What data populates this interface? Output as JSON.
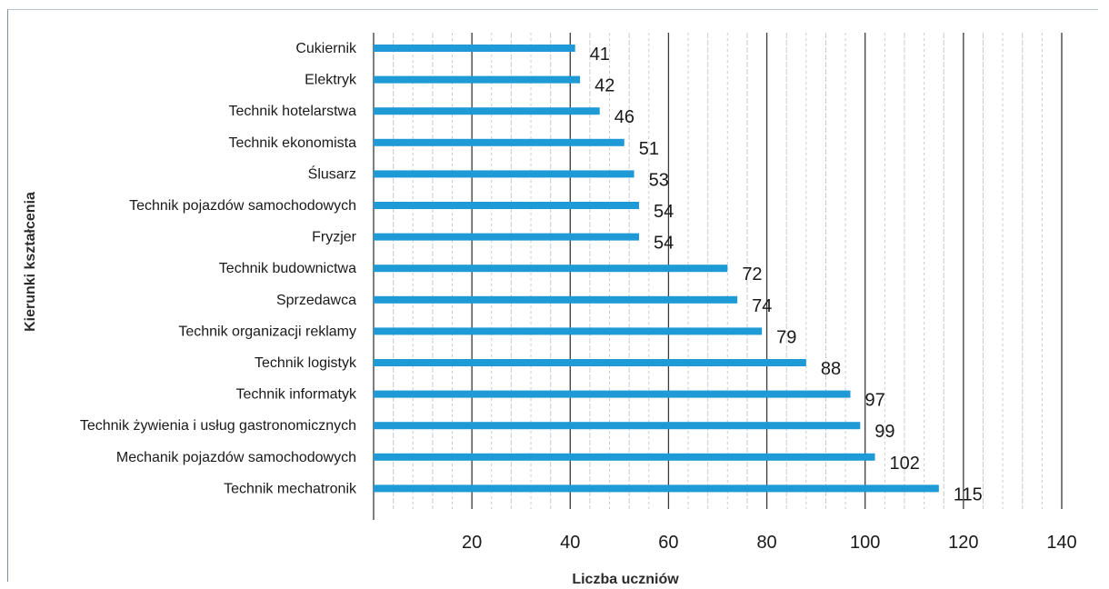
{
  "chart_data": {
    "type": "bar",
    "orientation": "horizontal",
    "categories": [
      "Cukiernik",
      "Elektryk",
      "Technik hotelarstwa",
      "Technik ekonomista",
      "Ślusarz",
      "Technik pojazdów samochodowych",
      "Fryzjer",
      "Technik budownictwa",
      "Sprzedawca",
      "Technik organizacji reklamy",
      "Technik logistyk",
      "Technik informatyk",
      "Technik żywienia i usług gastronomicznych",
      "Mechanik pojazdów samochodowych",
      "Technik mechatronik"
    ],
    "values": [
      41,
      42,
      46,
      51,
      53,
      54,
      54,
      72,
      74,
      79,
      88,
      97,
      99,
      102,
      115
    ],
    "value_labels": [
      "41",
      "42",
      "46",
      "51",
      "53",
      "54",
      "54",
      "72",
      "74",
      "79",
      "88",
      "97",
      "99",
      "102",
      "115"
    ],
    "xlabel": "Liczba uczniów",
    "ylabel": "Kierunki kształcenia",
    "xlim": [
      0,
      140
    ],
    "xticks": [
      20,
      40,
      60,
      80,
      100,
      120,
      140
    ],
    "xtick_labels": [
      "20",
      "40",
      "60",
      "80",
      "100",
      "120",
      "140"
    ],
    "grid": true,
    "legend": "none",
    "bar_color": "#1e9ad6"
  }
}
